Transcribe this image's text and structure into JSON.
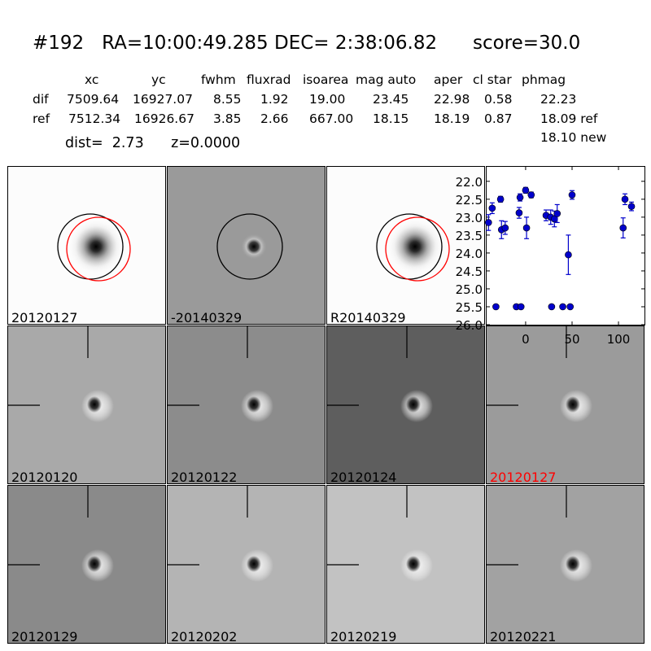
{
  "header": {
    "title": "#192   RA=10:00:49.285 DEC= 2:38:06.82      score=30.0",
    "columns": [
      "xc",
      "yc",
      "fwhm",
      "fluxrad",
      "isoarea",
      "mag auto",
      "aper",
      "cl star",
      "phmag"
    ],
    "rows": [
      {
        "label": "dif",
        "values": [
          "7509.64",
          "16927.07",
          "8.55",
          "1.92",
          "19.00",
          "23.45",
          "22.98",
          "0.58",
          "22.23"
        ]
      },
      {
        "label": "ref",
        "values": [
          "7512.34",
          "16926.67",
          "3.85",
          "2.66",
          "667.00",
          "18.15",
          "18.19",
          "0.87",
          "18.09 ref"
        ]
      }
    ],
    "phmag_new": "18.10 new",
    "dist_line": "dist=  2.73      z=0.0000"
  },
  "cutouts": [
    {
      "label": "20120127",
      "kind": "ref-star",
      "bg": "#fcfcfc",
      "circles": [
        "#000000",
        "#ff0000"
      ]
    },
    {
      "label": "-20140329",
      "kind": "diff-circle",
      "bg": "#9a9a9a",
      "circles": [
        "#000000"
      ]
    },
    {
      "label": "R20140329",
      "kind": "ref-star",
      "bg": "#fcfcfc",
      "circles": [
        "#000000",
        "#ff0000"
      ]
    },
    {
      "label": "20120120",
      "kind": "stamp",
      "bg": "#a9a9a9",
      "label_color": "#000000"
    },
    {
      "label": "20120122",
      "kind": "stamp",
      "bg": "#8c8c8c",
      "label_color": "#000000"
    },
    {
      "label": "20120124",
      "kind": "stamp",
      "bg": "#5e5e5e",
      "label_color": "#000000"
    },
    {
      "label": "20120127",
      "kind": "stamp",
      "bg": "#9b9b9b",
      "label_color": "#ff0000"
    },
    {
      "label": "20120129",
      "kind": "stamp",
      "bg": "#8a8a8a",
      "label_color": "#000000"
    },
    {
      "label": "20120202",
      "kind": "stamp",
      "bg": "#b4b4b4",
      "label_color": "#000000"
    },
    {
      "label": "20120219",
      "kind": "stamp",
      "bg": "#c2c2c2",
      "label_color": "#000000"
    },
    {
      "label": "20120221",
      "kind": "stamp",
      "bg": "#a2a2a2",
      "label_color": "#000000"
    }
  ],
  "chart_data": {
    "type": "scatter",
    "color": "#0000cc",
    "xticks": [
      "0",
      "50",
      "100"
    ],
    "xtick_values": [
      0,
      50,
      100
    ],
    "yticks": [
      "22.0",
      "22.5",
      "23.0",
      "23.5",
      "24.0",
      "24.5",
      "25.0",
      "25.5",
      "26.0"
    ],
    "ytick_values": [
      22.0,
      22.5,
      23.0,
      23.5,
      24.0,
      24.5,
      25.0,
      25.5,
      26.0
    ],
    "xlim": [
      -42,
      128
    ],
    "ylim": [
      26.0,
      21.8
    ],
    "y_inverted": true,
    "points": [
      {
        "x": -40,
        "y": 23.15,
        "err": 0.22
      },
      {
        "x": -36,
        "y": 22.75,
        "err": 0.15
      },
      {
        "x": -32,
        "y": 25.5,
        "err": 0.05
      },
      {
        "x": -27,
        "y": 22.5,
        "err": 0.08
      },
      {
        "x": -26,
        "y": 23.35,
        "err": 0.25
      },
      {
        "x": -22,
        "y": 23.3,
        "err": 0.18
      },
      {
        "x": -10,
        "y": 25.5,
        "err": 0.05
      },
      {
        "x": -7,
        "y": 22.88,
        "err": 0.15
      },
      {
        "x": -6,
        "y": 22.45,
        "err": 0.1
      },
      {
        "x": -5,
        "y": 25.5,
        "err": 0.05
      },
      {
        "x": 0,
        "y": 22.25,
        "err": 0.08
      },
      {
        "x": 1,
        "y": 23.3,
        "err": 0.3
      },
      {
        "x": 6,
        "y": 22.38,
        "err": 0.08
      },
      {
        "x": 22,
        "y": 22.95,
        "err": 0.15
      },
      {
        "x": 27,
        "y": 23.0,
        "err": 0.2
      },
      {
        "x": 28,
        "y": 25.5,
        "err": 0.05
      },
      {
        "x": 31,
        "y": 23.05,
        "err": 0.22
      },
      {
        "x": 34,
        "y": 22.9,
        "err": 0.25
      },
      {
        "x": 40,
        "y": 25.5,
        "err": 0.05
      },
      {
        "x": 46,
        "y": 24.05,
        "err": 0.55
      },
      {
        "x": 48,
        "y": 25.5,
        "err": 0.05
      },
      {
        "x": 50,
        "y": 22.38,
        "err": 0.12
      },
      {
        "x": 105,
        "y": 23.3,
        "err": 0.28
      },
      {
        "x": 107,
        "y": 22.5,
        "err": 0.15
      },
      {
        "x": 114,
        "y": 22.7,
        "err": 0.12
      }
    ]
  }
}
